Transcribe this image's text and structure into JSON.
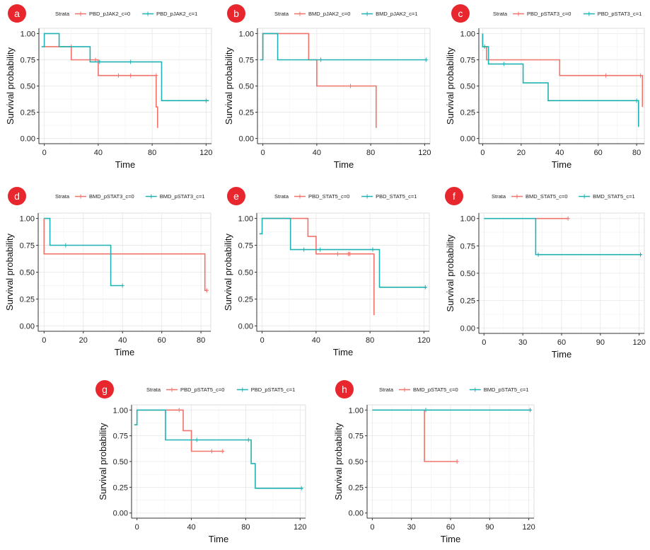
{
  "legend_title": "Strata",
  "colors": {
    "c0": "#f0736b",
    "c1": "#20b2b2",
    "badge": "#e8262d"
  },
  "chart_data": [
    {
      "panel": "a",
      "type": "line",
      "xlabel": "Time",
      "ylabel": "Survival probability",
      "xticks": [
        0,
        40,
        80,
        120
      ],
      "yticks": [
        "0.00",
        "0.25",
        "0.50",
        "0.75",
        "1.00"
      ],
      "xlim": [
        -4,
        124
      ],
      "ylim": [
        -0.05,
        1.05
      ],
      "series": [
        {
          "name": "PBD_pJAK2_c=0",
          "color": "#f0736b",
          "steps": [
            [
              0,
              0.875
            ],
            [
              20,
              0.875
            ],
            [
              20,
              0.75
            ],
            [
              40,
              0.75
            ],
            [
              40,
              0.6
            ],
            [
              83,
              0.6
            ],
            [
              83,
              0.3
            ],
            [
              84,
              0.3
            ],
            [
              84,
              0.1
            ]
          ],
          "censor": [
            [
              20,
              0.875
            ],
            [
              38,
              0.75
            ],
            [
              55,
              0.6
            ],
            [
              64,
              0.6
            ],
            [
              83,
              0.6
            ]
          ]
        },
        {
          "name": "PBD_pJAK2_c=1",
          "color": "#20b2b2",
          "steps": [
            [
              -2,
              0.875
            ],
            [
              0,
              0.875
            ],
            [
              0,
              1.0
            ],
            [
              11,
              1.0
            ],
            [
              11,
              0.875
            ],
            [
              34,
              0.875
            ],
            [
              34,
              0.73
            ],
            [
              87,
              0.73
            ],
            [
              87,
              0.36
            ],
            [
              122,
              0.36
            ]
          ],
          "censor": [
            [
              41,
              0.73
            ],
            [
              64,
              0.73
            ],
            [
              120,
              0.36
            ]
          ]
        }
      ]
    },
    {
      "panel": "b",
      "type": "line",
      "xlabel": "Time",
      "ylabel": "Survival probability",
      "xticks": [
        0,
        40,
        80,
        120
      ],
      "yticks": [
        "0.00",
        "0.25",
        "0.50",
        "0.75",
        "1.00"
      ],
      "xlim": [
        -4,
        124
      ],
      "ylim": [
        -0.05,
        1.05
      ],
      "series": [
        {
          "name": "BMD_pJAK2_c=0",
          "color": "#f0736b",
          "steps": [
            [
              0,
              0.75
            ],
            [
              0,
              1.0
            ],
            [
              34,
              1.0
            ],
            [
              34,
              0.75
            ],
            [
              40,
              0.75
            ],
            [
              40,
              0.5
            ],
            [
              84,
              0.5
            ],
            [
              84,
              0.1
            ]
          ],
          "censor": [
            [
              65,
              0.5
            ]
          ]
        },
        {
          "name": "BMD_pJAK2_c=1",
          "color": "#20b2b2",
          "steps": [
            [
              -2,
              0.75
            ],
            [
              0,
              0.75
            ],
            [
              0,
              1.0
            ],
            [
              11,
              1.0
            ],
            [
              11,
              0.75
            ],
            [
              122,
              0.75
            ]
          ],
          "censor": [
            [
              43,
              0.75
            ],
            [
              121,
              0.75
            ]
          ]
        }
      ]
    },
    {
      "panel": "c",
      "type": "line",
      "xlabel": "Time",
      "ylabel": "Survival probability",
      "xticks": [
        0,
        20,
        40,
        60,
        80
      ],
      "yticks": [
        "0.00",
        "0.25",
        "0.50",
        "0.75",
        "1.00"
      ],
      "xlim": [
        -2,
        84
      ],
      "ylim": [
        -0.05,
        1.05
      ],
      "series": [
        {
          "name": "PBD_pSTAT3_c=0",
          "color": "#f0736b",
          "steps": [
            [
              0,
              1.0
            ],
            [
              0,
              0.875
            ],
            [
              2,
              0.875
            ],
            [
              2,
              0.75
            ],
            [
              40,
              0.75
            ],
            [
              40,
              0.6
            ],
            [
              83,
              0.6
            ],
            [
              83,
              0.3
            ]
          ],
          "censor": [
            [
              64,
              0.6
            ],
            [
              82,
              0.6
            ]
          ]
        },
        {
          "name": "PBD_pSTAT3_c=1",
          "color": "#20b2b2",
          "steps": [
            [
              0,
              1.0
            ],
            [
              0,
              0.875
            ],
            [
              3,
              0.875
            ],
            [
              3,
              0.71
            ],
            [
              21,
              0.71
            ],
            [
              21,
              0.53
            ],
            [
              34,
              0.53
            ],
            [
              34,
              0.36
            ],
            [
              81,
              0.36
            ],
            [
              81,
              0.11
            ]
          ],
          "censor": [
            [
              1,
              0.875
            ],
            [
              11,
              0.71
            ],
            [
              80,
              0.36
            ]
          ]
        }
      ]
    },
    {
      "panel": "d",
      "type": "line",
      "xlabel": "Time",
      "ylabel": "Survival probability",
      "xticks": [
        0,
        20,
        40,
        60,
        80
      ],
      "yticks": [
        "0.00",
        "0.25",
        "0.50",
        "0.75",
        "1.00"
      ],
      "xlim": [
        -3,
        85
      ],
      "ylim": [
        -0.05,
        1.05
      ],
      "series": [
        {
          "name": "BMD_pSTAT3_c=0",
          "color": "#f0736b",
          "steps": [
            [
              0,
              1.0
            ],
            [
              0,
              0.67
            ],
            [
              82,
              0.67
            ],
            [
              82,
              0.33
            ],
            [
              83,
              0.33
            ]
          ],
          "censor": [
            [
              83,
              0.33
            ]
          ]
        },
        {
          "name": "BMD_pSTAT3_c=1",
          "color": "#20b2b2",
          "steps": [
            [
              0,
              1.0
            ],
            [
              3,
              1.0
            ],
            [
              3,
              0.75
            ],
            [
              34,
              0.75
            ],
            [
              34,
              0.375
            ],
            [
              40,
              0.375
            ]
          ],
          "censor": [
            [
              11,
              0.75
            ],
            [
              40,
              0.375
            ]
          ]
        }
      ]
    },
    {
      "panel": "e",
      "type": "line",
      "xlabel": "Time",
      "ylabel": "Survival probability",
      "xticks": [
        0,
        40,
        80,
        120
      ],
      "yticks": [
        "0.00",
        "0.25",
        "0.50",
        "0.75",
        "1.00"
      ],
      "xlim": [
        -4,
        124
      ],
      "ylim": [
        -0.05,
        1.05
      ],
      "series": [
        {
          "name": "PBD_STAT5_c=0",
          "color": "#f0736b",
          "steps": [
            [
              0,
              1.0
            ],
            [
              34,
              1.0
            ],
            [
              34,
              0.833
            ],
            [
              40,
              0.833
            ],
            [
              40,
              0.67
            ],
            [
              83,
              0.67
            ],
            [
              83,
              0.1
            ]
          ],
          "censor": [
            [
              56,
              0.67
            ],
            [
              64,
              0.67
            ],
            [
              65,
              0.67
            ]
          ]
        },
        {
          "name": "PBD_STAT5_c=1",
          "color": "#20b2b2",
          "steps": [
            [
              -2,
              0.857
            ],
            [
              0,
              0.857
            ],
            [
              0,
              1.0
            ],
            [
              21,
              1.0
            ],
            [
              21,
              0.71
            ],
            [
              87,
              0.71
            ],
            [
              87,
              0.36
            ],
            [
              122,
              0.36
            ]
          ],
          "censor": [
            [
              31,
              0.71
            ],
            [
              43,
              0.71
            ],
            [
              82,
              0.71
            ],
            [
              121,
              0.36
            ]
          ]
        }
      ]
    },
    {
      "panel": "f",
      "type": "line",
      "xlabel": "Time",
      "ylabel": "Survival probability",
      "xticks": [
        0,
        30,
        60,
        90,
        120
      ],
      "yticks": [
        "0.00",
        "0.25",
        "0.50",
        "0.75",
        "1.00"
      ],
      "xlim": [
        -4,
        124
      ],
      "ylim": [
        -0.05,
        1.05
      ],
      "series": [
        {
          "name": "BMD_STAT5_c=0",
          "color": "#f0736b",
          "steps": [
            [
              40,
              1.0
            ],
            [
              65,
              1.0
            ]
          ],
          "censor": [
            [
              65,
              1.0
            ]
          ]
        },
        {
          "name": "BMD_STAT5_c=1",
          "color": "#20b2b2",
          "steps": [
            [
              0,
              1.0
            ],
            [
              40,
              1.0
            ],
            [
              40,
              0.67
            ],
            [
              122,
              0.67
            ]
          ],
          "censor": [
            [
              42,
              0.67
            ],
            [
              121,
              0.67
            ]
          ]
        }
      ]
    },
    {
      "panel": "g",
      "type": "line",
      "xlabel": "Time",
      "ylabel": "Survival probability",
      "xticks": [
        0,
        40,
        80,
        120
      ],
      "yticks": [
        "0.00",
        "0.25",
        "0.50",
        "0.75",
        "1.00"
      ],
      "xlim": [
        -4,
        124
      ],
      "ylim": [
        -0.05,
        1.05
      ],
      "series": [
        {
          "name": "PBD_pSTAT5_c=0",
          "color": "#f0736b",
          "steps": [
            [
              0,
              1.0
            ],
            [
              34,
              1.0
            ],
            [
              34,
              0.8
            ],
            [
              40,
              0.8
            ],
            [
              40,
              0.6
            ],
            [
              64,
              0.6
            ]
          ],
          "censor": [
            [
              31,
              1.0
            ],
            [
              55,
              0.6
            ],
            [
              63,
              0.6
            ]
          ]
        },
        {
          "name": "PBD_pSTAT5_c=1",
          "color": "#20b2b2",
          "steps": [
            [
              -2,
              0.857
            ],
            [
              0,
              0.857
            ],
            [
              0,
              1.0
            ],
            [
              21,
              1.0
            ],
            [
              21,
              0.71
            ],
            [
              84,
              0.71
            ],
            [
              84,
              0.48
            ],
            [
              87,
              0.48
            ],
            [
              87,
              0.24
            ],
            [
              122,
              0.24
            ]
          ],
          "censor": [
            [
              44,
              0.71
            ],
            [
              82,
              0.71
            ],
            [
              121,
              0.24
            ]
          ]
        }
      ]
    },
    {
      "panel": "h",
      "type": "line",
      "xlabel": "Time",
      "ylabel": "Survival probability",
      "xticks": [
        0,
        30,
        60,
        90,
        120
      ],
      "yticks": [
        "0.00",
        "0.25",
        "0.50",
        "0.75",
        "1.00"
      ],
      "xlim": [
        -4,
        124
      ],
      "ylim": [
        -0.05,
        1.05
      ],
      "series": [
        {
          "name": "BMD_pSTAT5_c=0",
          "color": "#f0736b",
          "steps": [
            [
              40,
              1.0
            ],
            [
              40,
              0.5
            ],
            [
              65,
              0.5
            ]
          ],
          "censor": [
            [
              65,
              0.5
            ]
          ]
        },
        {
          "name": "BMD_pSTAT5_c=1",
          "color": "#20b2b2",
          "steps": [
            [
              0,
              1.0
            ],
            [
              122,
              1.0
            ]
          ],
          "censor": [
            [
              41,
              1.0
            ],
            [
              121,
              1.0
            ]
          ]
        }
      ]
    }
  ]
}
